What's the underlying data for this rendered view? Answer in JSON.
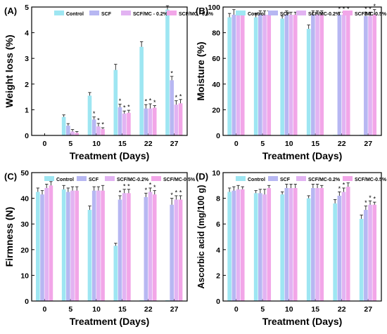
{
  "colors": {
    "Control": "#9ee6f2",
    "SCF": "#b7b7f2",
    "SCF/MC - 0.2%": "#e2b3f2",
    "SCF/MC - 0.5%": "#f2a6e8",
    "error_bar": "#222222",
    "axis": "#000000"
  },
  "chart_data": [
    {
      "type": "bar",
      "panel_label": "(A)",
      "xlabel": "Treatment (Days)",
      "ylabel": "Weight loss (%)",
      "categories": [
        "0",
        "5",
        "10",
        "15",
        "22",
        "27"
      ],
      "ylim": [
        0,
        5
      ],
      "yticks": [
        0,
        1,
        2,
        3,
        4,
        5
      ],
      "legend": [
        "Control",
        "SCF",
        "SCF/MC - 0.2%",
        "SCF/MC - 0.5%"
      ],
      "legend_position": "top",
      "series": [
        {
          "name": "Control",
          "values": [
            0,
            0.72,
            1.55,
            2.55,
            3.45,
            4.9
          ],
          "errors": [
            0,
            0.08,
            0.12,
            0.22,
            0.2,
            0.15
          ],
          "stars": [
            false,
            false,
            false,
            false,
            false,
            false
          ]
        },
        {
          "name": "SCF",
          "values": [
            0,
            0.38,
            0.62,
            1.1,
            1.05,
            2.15
          ],
          "errors": [
            0,
            0.08,
            0.1,
            0.12,
            0.15,
            0.15
          ],
          "stars": [
            false,
            false,
            true,
            true,
            true,
            true
          ]
        },
        {
          "name": "SCF/MC - 0.2%",
          "values": [
            0,
            0.15,
            0.35,
            0.85,
            1.05,
            1.2
          ],
          "errors": [
            0,
            0.08,
            0.12,
            0.1,
            0.18,
            0.15
          ],
          "stars": [
            false,
            false,
            true,
            true,
            true,
            true
          ]
        },
        {
          "name": "SCF/MC - 0.5%",
          "values": [
            0,
            0.1,
            0.25,
            0.88,
            1.08,
            1.25
          ],
          "errors": [
            0,
            0.05,
            0.05,
            0.1,
            0.08,
            0.15
          ],
          "stars": [
            false,
            false,
            true,
            true,
            true,
            true
          ]
        }
      ]
    },
    {
      "type": "bar",
      "panel_label": "(B)",
      "xlabel": "Treatment (Days)",
      "ylabel": "Moisture (%)",
      "categories": [
        "0",
        "5",
        "10",
        "15",
        "22",
        "27"
      ],
      "ylim": [
        0,
        100
      ],
      "yticks": [
        0,
        20,
        40,
        60,
        80,
        100
      ],
      "legend": [
        "Control",
        "SCF",
        "SCF/MC-0.2%",
        "SCF/MC-0.5%"
      ],
      "legend_position": "top",
      "series": [
        {
          "name": "Control",
          "values": [
            92,
            92,
            91,
            83,
            0.5,
            0.5
          ],
          "errors": [
            3,
            3,
            2,
            3,
            0,
            0
          ],
          "stars": [
            false,
            false,
            false,
            false,
            false,
            false
          ]
        },
        {
          "name": "SCF",
          "values": [
            94,
            94,
            94,
            94,
            94,
            93
          ],
          "errors": [
            4,
            3,
            3,
            3,
            2,
            3
          ],
          "stars": [
            false,
            false,
            false,
            false,
            true,
            true
          ]
        },
        {
          "name": "SCF/MC-0.2%",
          "values": [
            94,
            94,
            94,
            94,
            94,
            93
          ],
          "errors": [
            3,
            3,
            2,
            3,
            2,
            3
          ],
          "stars": [
            false,
            false,
            false,
            false,
            true,
            true
          ]
        },
        {
          "name": "SCF/MC-0.5%",
          "values": [
            94,
            94,
            94,
            94,
            94,
            94
          ],
          "errors": [
            3,
            3,
            2,
            3,
            2,
            4
          ],
          "stars": [
            false,
            false,
            false,
            false,
            true,
            true
          ]
        }
      ]
    },
    {
      "type": "bar",
      "panel_label": "(C)",
      "xlabel": "Treatment (Days)",
      "ylabel": "Firmness (N)",
      "categories": [
        "0",
        "5",
        "10",
        "15",
        "22",
        "27"
      ],
      "ylim": [
        0,
        50
      ],
      "yticks": [
        0,
        10,
        20,
        30,
        40,
        50
      ],
      "legend": [
        "Control",
        "SCF",
        "SCF/MC-0.2%",
        "SCF/MC-0.5%"
      ],
      "legend_position": "top",
      "series": [
        {
          "name": "Control",
          "values": [
            42.5,
            43.5,
            35.5,
            21.5,
            0.3,
            0.3
          ],
          "errors": [
            1.5,
            1.5,
            1.5,
            1,
            0,
            0
          ],
          "stars": [
            false,
            false,
            false,
            false,
            false,
            false
          ]
        },
        {
          "name": "SCF",
          "values": [
            41.5,
            42.5,
            43,
            39.5,
            40.5,
            37.5
          ],
          "errors": [
            1.5,
            1.5,
            1.5,
            1.5,
            1.5,
            2.5
          ],
          "stars": [
            false,
            false,
            false,
            true,
            true,
            true
          ]
        },
        {
          "name": "SCF/MC-0.2%",
          "values": [
            44,
            43,
            43,
            42,
            42.5,
            39.5
          ],
          "errors": [
            1.5,
            1.5,
            1.5,
            1.5,
            1.5,
            1.5
          ],
          "stars": [
            false,
            false,
            false,
            true,
            true,
            true
          ]
        },
        {
          "name": "SCF/MC-0.5%",
          "values": [
            45,
            43,
            43,
            42,
            41.5,
            39.5
          ],
          "errors": [
            1.5,
            1.5,
            2,
            1.5,
            1.5,
            1.5
          ],
          "stars": [
            false,
            false,
            false,
            true,
            true,
            true
          ]
        }
      ]
    },
    {
      "type": "bar",
      "panel_label": "(D)",
      "xlabel": "Treatment (Days)",
      "ylabel": "Ascorbic acid (mg/100 g)",
      "categories": [
        "0",
        "5",
        "10",
        "15",
        "22",
        "27"
      ],
      "ylim": [
        0,
        10
      ],
      "yticks": [
        0,
        2,
        4,
        6,
        8,
        10
      ],
      "legend": [
        "Control",
        "SCF",
        "SCF/MC-0.2%",
        "SCF/MC-0.5%"
      ],
      "legend_position": "top",
      "series": [
        {
          "name": "Control",
          "values": [
            8.5,
            8.4,
            8.3,
            8.0,
            7.6,
            6.4
          ],
          "errors": [
            0.3,
            0.2,
            0.2,
            0.2,
            0.3,
            0.3
          ],
          "stars": [
            false,
            false,
            false,
            false,
            false,
            false
          ]
        },
        {
          "name": "SCF",
          "values": [
            8.6,
            8.4,
            8.8,
            8.8,
            8.2,
            7.1
          ],
          "errors": [
            0.3,
            0.3,
            0.3,
            0.3,
            0.3,
            0.3
          ],
          "stars": [
            false,
            false,
            false,
            false,
            true,
            true
          ]
        },
        {
          "name": "SCF/MC-0.2%",
          "values": [
            8.7,
            8.3,
            8.8,
            8.8,
            8.5,
            7.5
          ],
          "errors": [
            0.3,
            0.4,
            0.3,
            0.3,
            0.3,
            0.3
          ],
          "stars": [
            false,
            false,
            false,
            false,
            true,
            true
          ]
        },
        {
          "name": "SCF/MC-0.5%",
          "values": [
            8.7,
            8.8,
            8.8,
            8.8,
            8.9,
            7.5
          ],
          "errors": [
            0.2,
            0.2,
            0.3,
            0.2,
            0.3,
            0.2
          ],
          "stars": [
            false,
            false,
            false,
            false,
            true,
            true
          ]
        }
      ]
    }
  ]
}
